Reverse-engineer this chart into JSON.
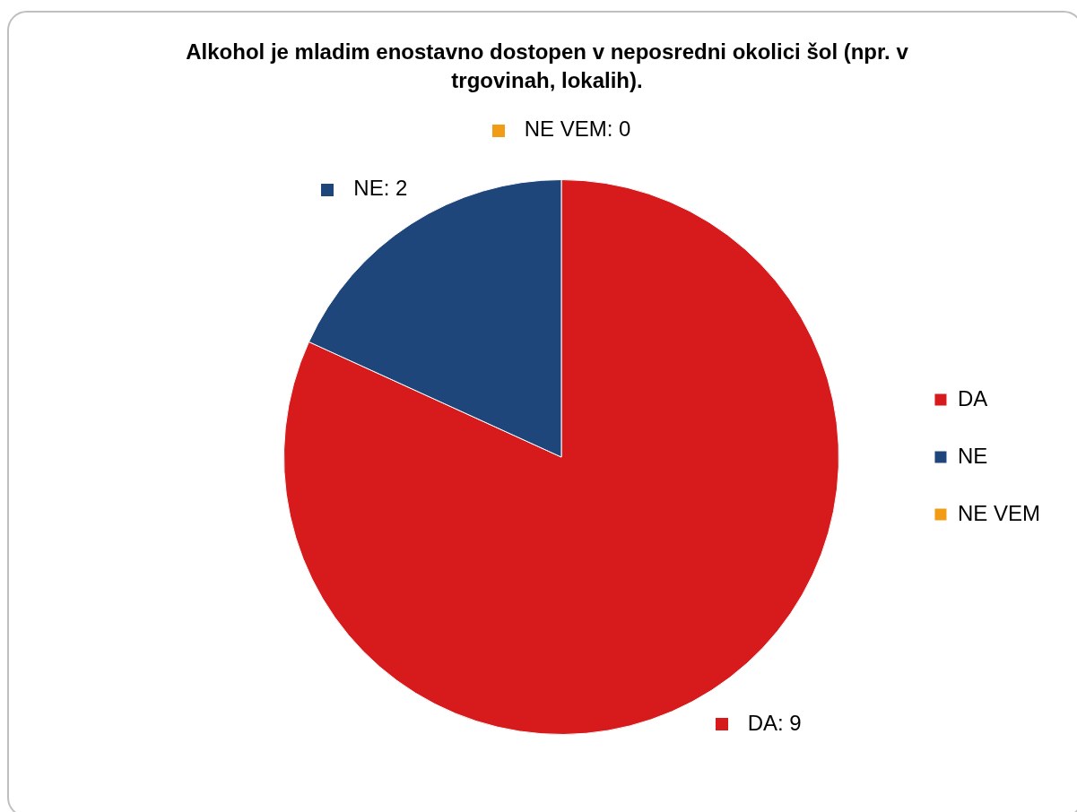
{
  "chart_data": {
    "type": "pie",
    "title": "Alkohol je mladim enostavno dostopen v neposredni okolici šol (npr. v trgovinah, lokalih).",
    "categories": [
      "DA",
      "NE",
      "NE VEM"
    ],
    "values": [
      9,
      2,
      0
    ],
    "value_labels": [
      "DA: 9",
      "NE: 2",
      "NE VEM: 0"
    ],
    "colors": [
      "#d71a1c",
      "#1f467b",
      "#f29c16"
    ],
    "legend": "right"
  }
}
